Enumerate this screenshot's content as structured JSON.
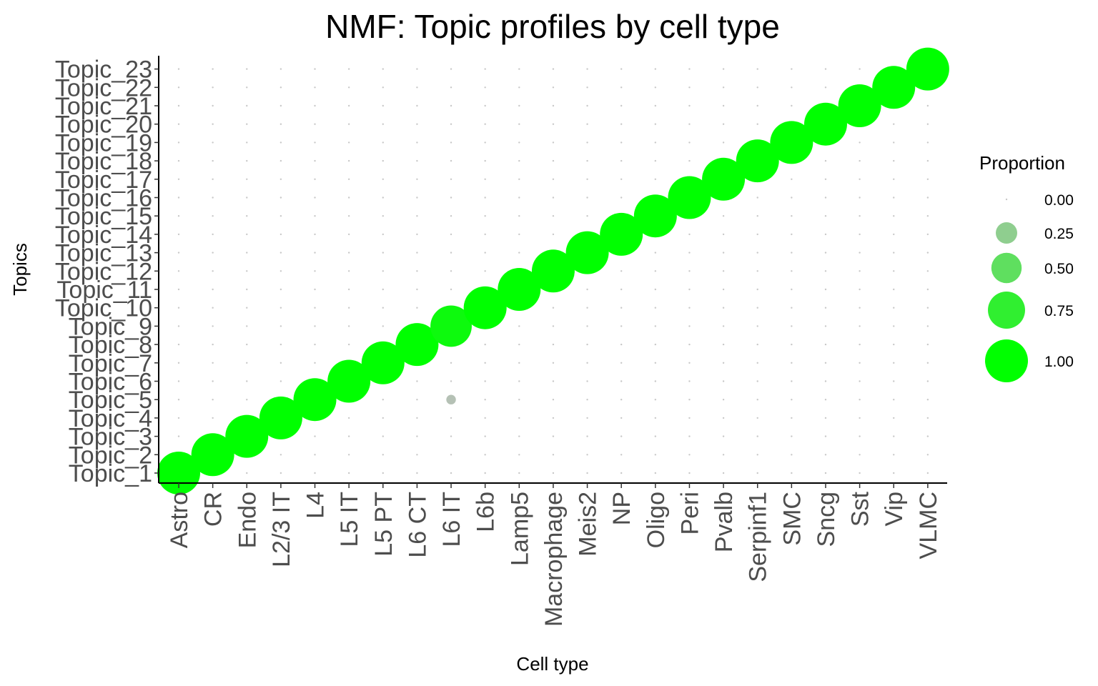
{
  "chart_data": {
    "type": "scatter",
    "title": "NMF: Topic profiles by cell type",
    "xlabel": "Cell type",
    "ylabel": "Topics",
    "categories": [
      "Astro",
      "CR",
      "Endo",
      "L2/3 IT",
      "L4",
      "L5 IT",
      "L5 PT",
      "L6 CT",
      "L6 IT",
      "L6b",
      "Lamp5",
      "Macrophage",
      "Meis2",
      "NP",
      "Oligo",
      "Peri",
      "Pvalb",
      "Serpinf1",
      "SMC",
      "Sncg",
      "Sst",
      "Vip",
      "VLMC"
    ],
    "topics": [
      "Topic_1",
      "Topic_2",
      "Topic_3",
      "Topic_4",
      "Topic_5",
      "Topic_6",
      "Topic_7",
      "Topic_8",
      "Topic_9",
      "Topic_10",
      "Topic_11",
      "Topic_12",
      "Topic_13",
      "Topic_14",
      "Topic_15",
      "Topic_16",
      "Topic_17",
      "Topic_18",
      "Topic_19",
      "Topic_20",
      "Topic_21",
      "Topic_22",
      "Topic_23"
    ],
    "points": [
      {
        "x": "Astro",
        "y": "Topic_1",
        "value": 1.0
      },
      {
        "x": "CR",
        "y": "Topic_2",
        "value": 1.0
      },
      {
        "x": "Endo",
        "y": "Topic_3",
        "value": 1.0
      },
      {
        "x": "L2/3 IT",
        "y": "Topic_4",
        "value": 1.0
      },
      {
        "x": "L4",
        "y": "Topic_5",
        "value": 1.0
      },
      {
        "x": "L5 IT",
        "y": "Topic_6",
        "value": 1.0
      },
      {
        "x": "L5 PT",
        "y": "Topic_7",
        "value": 1.0
      },
      {
        "x": "L6 CT",
        "y": "Topic_8",
        "value": 1.0
      },
      {
        "x": "L6 IT",
        "y": "Topic_9",
        "value": 0.93
      },
      {
        "x": "L6 IT",
        "y": "Topic_5",
        "value": 0.05
      },
      {
        "x": "L6b",
        "y": "Topic_10",
        "value": 1.0
      },
      {
        "x": "Lamp5",
        "y": "Topic_11",
        "value": 1.0
      },
      {
        "x": "Macrophage",
        "y": "Topic_12",
        "value": 1.0
      },
      {
        "x": "Meis2",
        "y": "Topic_13",
        "value": 1.0
      },
      {
        "x": "NP",
        "y": "Topic_14",
        "value": 1.0
      },
      {
        "x": "Oligo",
        "y": "Topic_15",
        "value": 1.0
      },
      {
        "x": "Peri",
        "y": "Topic_16",
        "value": 1.0
      },
      {
        "x": "Pvalb",
        "y": "Topic_17",
        "value": 1.0
      },
      {
        "x": "Serpinf1",
        "y": "Topic_18",
        "value": 1.0
      },
      {
        "x": "SMC",
        "y": "Topic_19",
        "value": 1.0
      },
      {
        "x": "Sncg",
        "y": "Topic_20",
        "value": 1.0
      },
      {
        "x": "Sst",
        "y": "Topic_21",
        "value": 1.0
      },
      {
        "x": "Vip",
        "y": "Topic_22",
        "value": 1.0
      },
      {
        "x": "VLMC",
        "y": "Topic_23",
        "value": 1.0
      }
    ],
    "legend": {
      "title": "Proportion",
      "position": "right",
      "entries": [
        {
          "label": "0.00",
          "value": 0.0
        },
        {
          "label": "0.25",
          "value": 0.25
        },
        {
          "label": "0.50",
          "value": 0.5
        },
        {
          "label": "0.75",
          "value": 0.75
        },
        {
          "label": "1.00",
          "value": 1.0
        }
      ]
    },
    "colors": {
      "low": "#bebebe",
      "high": "#00ff00",
      "zero_dot": "#c8c8c8"
    },
    "grid": false
  }
}
